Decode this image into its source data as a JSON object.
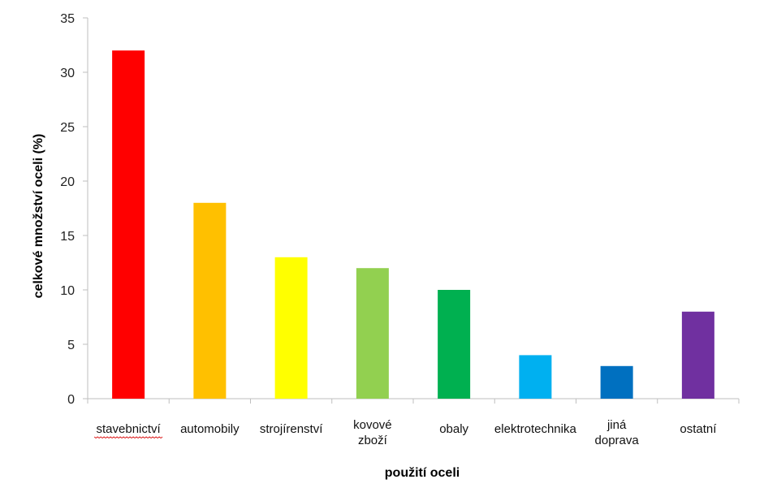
{
  "chart_data": {
    "type": "bar",
    "categories": [
      [
        "stavebnictví"
      ],
      [
        "automobily"
      ],
      [
        "strojírenství"
      ],
      [
        "kovové",
        "zboží"
      ],
      [
        "obaly"
      ],
      [
        "elektrotechnika"
      ],
      [
        "jiná",
        "doprava"
      ],
      [
        "ostatní"
      ]
    ],
    "values": [
      32,
      18,
      13,
      12,
      10,
      4,
      3,
      8
    ],
    "colors": [
      "#ff0000",
      "#ffc000",
      "#ffff00",
      "#92d050",
      "#00b050",
      "#00b0f0",
      "#0070c0",
      "#7030a0"
    ],
    "xlabel": "použití oceli",
    "ylabel": "celkové množství oceli (%)",
    "ylim": [
      0,
      35
    ],
    "yticks": [
      0,
      5,
      10,
      15,
      20,
      25,
      30,
      35
    ],
    "grid": false
  }
}
